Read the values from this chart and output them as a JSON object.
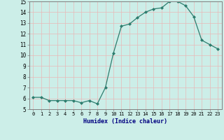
{
  "x": [
    0,
    1,
    2,
    3,
    4,
    5,
    6,
    7,
    8,
    9,
    10,
    11,
    12,
    13,
    14,
    15,
    16,
    17,
    18,
    19,
    20,
    21,
    22,
    23
  ],
  "y": [
    6.1,
    6.1,
    5.8,
    5.8,
    5.8,
    5.8,
    5.6,
    5.8,
    5.5,
    7.0,
    10.2,
    12.7,
    12.9,
    13.5,
    14.0,
    14.3,
    14.4,
    15.0,
    15.0,
    14.6,
    13.6,
    11.4,
    11.0,
    10.6
  ],
  "xlabel": "Humidex (Indice chaleur)",
  "ylim": [
    5,
    15
  ],
  "xlim": [
    -0.5,
    23.5
  ],
  "yticks": [
    5,
    6,
    7,
    8,
    9,
    10,
    11,
    12,
    13,
    14,
    15
  ],
  "xticks": [
    0,
    1,
    2,
    3,
    4,
    5,
    6,
    7,
    8,
    9,
    10,
    11,
    12,
    13,
    14,
    15,
    16,
    17,
    18,
    19,
    20,
    21,
    22,
    23
  ],
  "line_color": "#2d7d6e",
  "marker": "D",
  "marker_size": 2.0,
  "bg_color": "#cceee8",
  "grid_color": "#e8b8b8",
  "xlabel_color": "#000080",
  "tick_label_color": "#000000",
  "spine_color": "#808080"
}
